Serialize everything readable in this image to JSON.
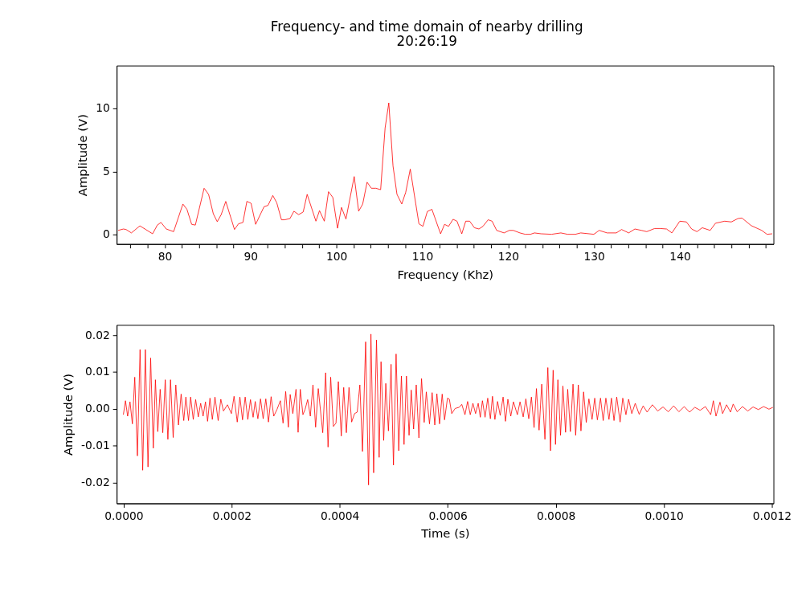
{
  "chart_data": [
    {
      "type": "line",
      "title": "Frequency- and time domain of nearby drilling",
      "subtitle": "20:26:19",
      "xlabel": "Frequency (Khz)",
      "ylabel": "Amplitude (V)",
      "xlim": [
        74.4,
        150.9
      ],
      "ylim": [
        -0.75,
        13.4
      ],
      "xticks": [
        {
          "value": 76,
          "label": null
        },
        {
          "value": 78,
          "label": null
        },
        80,
        {
          "value": 82,
          "label": null
        },
        {
          "value": 84,
          "label": null
        },
        {
          "value": 86,
          "label": null
        },
        {
          "value": 88,
          "label": null
        },
        90,
        {
          "value": 92,
          "label": null
        },
        {
          "value": 94,
          "label": null
        },
        {
          "value": 96,
          "label": null
        },
        {
          "value": 98,
          "label": null
        },
        100,
        {
          "value": 102,
          "label": null
        },
        {
          "value": 104,
          "label": null
        },
        {
          "value": 106,
          "label": null
        },
        {
          "value": 108,
          "label": null
        },
        110,
        {
          "value": 112,
          "label": null
        },
        {
          "value": 114,
          "label": null
        },
        {
          "value": 116,
          "label": null
        },
        {
          "value": 118,
          "label": null
        },
        120,
        {
          "value": 122,
          "label": null
        },
        {
          "value": 124,
          "label": null
        },
        {
          "value": 126,
          "label": null
        },
        {
          "value": 128,
          "label": null
        },
        130,
        {
          "value": 132,
          "label": null
        },
        {
          "value": 134,
          "label": null
        },
        {
          "value": 136,
          "label": null
        },
        {
          "value": 138,
          "label": null
        },
        140,
        {
          "value": 142,
          "label": null
        },
        {
          "value": 144,
          "label": null
        },
        {
          "value": 146,
          "label": null
        },
        {
          "value": 148,
          "label": null
        },
        {
          "value": 150,
          "label": null
        }
      ],
      "yticks": [
        0,
        5,
        10
      ],
      "grid": false,
      "marker": "none",
      "line_style": "solid",
      "x": [
        74.58,
        75.2,
        75.5,
        76.12,
        77.11,
        78.59,
        79.14,
        79.57,
        80.18,
        81.04,
        82.12,
        82.59,
        83.14,
        83.57,
        84.59,
        85.11,
        85.66,
        86.12,
        86.58,
        87.11,
        88.13,
        88.59,
        89.11,
        89.57,
        90.06,
        90.59,
        91.57,
        92.03,
        92.59,
        93.05,
        93.6,
        93.97,
        94.59,
        95.05,
        95.6,
        96.13,
        96.59,
        97.61,
        98.03,
        98.59,
        99.08,
        99.58,
        100.13,
        100.59,
        101.11,
        102.07,
        102.59,
        103.06,
        103.57,
        104.07,
        104.59,
        105.15,
        105.67,
        106.1,
        106.59,
        107.05,
        107.61,
        108.07,
        108.6,
        109.61,
        110.07,
        110.59,
        111.12,
        112.13,
        112.59,
        113.06,
        113.58,
        114.04,
        114.6,
        115.06,
        115.52,
        116.07,
        116.6,
        117.06,
        117.67,
        118.13,
        118.66,
        119.52,
        120.14,
        120.6,
        121.37,
        121.98,
        122.6,
        123.06,
        123.83,
        125.06,
        126.14,
        126.91,
        127.83,
        128.45,
        129.98,
        130.6,
        131.52,
        132.6,
        133.21,
        134.04,
        134.76,
        135.52,
        136.14,
        137.06,
        137.68,
        138.45,
        139.07,
        139.99,
        140.76,
        141.37,
        141.99,
        142.6,
        143.53,
        144.15,
        145.22,
        145.99,
        146.76,
        147.23,
        148.3,
        149.53,
        150.15,
        150.76
      ],
      "series": [
        {
          "color": "#ff0000",
          "values": [
            0.33,
            0.44,
            0.4,
            0.13,
            0.69,
            0.06,
            0.75,
            0.96,
            0.44,
            0.23,
            2.42,
            2.0,
            0.81,
            0.75,
            3.67,
            3.19,
            1.65,
            1.02,
            1.58,
            2.63,
            0.4,
            0.85,
            0.96,
            2.63,
            2.48,
            0.81,
            2.21,
            2.31,
            3.1,
            2.52,
            1.17,
            1.17,
            1.27,
            1.85,
            1.58,
            1.79,
            3.19,
            1.06,
            1.9,
            1.06,
            3.4,
            2.94,
            0.5,
            2.15,
            1.23,
            4.6,
            1.85,
            2.42,
            4.15,
            3.67,
            3.67,
            3.56,
            8.46,
            10.44,
            5.44,
            3.19,
            2.42,
            3.35,
            5.19,
            0.85,
            0.65,
            1.83,
            2.0,
            0.06,
            0.81,
            0.65,
            1.21,
            1.06,
            0.06,
            1.06,
            1.06,
            0.54,
            0.44,
            0.65,
            1.17,
            1.06,
            0.33,
            0.13,
            0.33,
            0.33,
            0.13,
            0.02,
            0.02,
            0.13,
            0.06,
            0.02,
            0.13,
            0.02,
            0.02,
            0.13,
            0.02,
            0.33,
            0.13,
            0.13,
            0.4,
            0.13,
            0.44,
            0.33,
            0.23,
            0.48,
            0.48,
            0.44,
            0.13,
            1.06,
            1.0,
            0.44,
            0.23,
            0.54,
            0.33,
            0.9,
            1.06,
            1.0,
            1.27,
            1.31,
            0.71,
            0.33,
            0.02,
            0.06
          ]
        }
      ]
    },
    {
      "type": "line",
      "xlabel": "Time (s)",
      "ylabel": "Amplitude (V)",
      "xlim": [
        -1.3e-05,
        0.001203
      ],
      "ylim": [
        -0.0257,
        0.0228
      ],
      "xticks": [
        {
          "value": 0,
          "label": "0.0000"
        },
        {
          "value": 0.0002,
          "label": "0.0002"
        },
        {
          "value": 0.0004,
          "label": "0.0004"
        },
        {
          "value": 0.0006,
          "label": "0.0006"
        },
        {
          "value": 0.0008,
          "label": "0.0008"
        },
        {
          "value": 0.001,
          "label": "0.0010"
        },
        {
          "value": 0.0012,
          "label": "0.0012"
        }
      ],
      "yticks": [
        -0.02,
        -0.01,
        {
          "value": 0,
          "label": "0.00"
        },
        0.01,
        0.02
      ],
      "grid": false,
      "marker": "none",
      "line_style": "solid",
      "x": [
        -5e-07,
        3.4e-06,
        7.4e-06,
        1.18e-05,
        1.62e-05,
        2.06e-05,
        2.55e-05,
        3.04e-05,
        3.53e-05,
        4.02e-05,
        4.51e-05,
        5e-05,
        5.49e-05,
        5.88e-05,
        6.32e-05,
        6.76e-05,
        7.25e-05,
        7.7e-05,
        8.19e-05,
        8.68e-05,
        9.17e-05,
        9.66e-05,
        0.0001015,
        0.0001064,
        0.0001113,
        0.0001152,
        0.0001201,
        0.000124,
        0.0001289,
        0.0001333,
        0.0001382,
        0.0001426,
        0.0001471,
        0.0001515,
        0.0001554,
        0.0001598,
        0.0001642,
        0.0001691,
        0.000175,
        0.0001799,
        0.0001848,
        0.0001922,
        0.0001995,
        0.0002044,
        0.0002103,
        0.0002152,
        0.0002201,
        0.000225,
        0.0002299,
        0.0002348,
        0.0002397,
        0.0002436,
        0.0002485,
        0.0002534,
        0.0002583,
        0.0002632,
        0.0002681,
        0.000273,
        0.0002779,
        0.0002838,
        0.0002902,
        0.0002951,
        0.0003,
        0.0003049,
        0.0003083,
        0.0003132,
        0.0003191,
        0.000323,
        0.000327,
        0.0003319,
        0.0003358,
        0.0003407,
        0.0003456,
        0.0003505,
        0.0003554,
        0.0003603,
        0.0003686,
        0.000374,
        0.0003784,
        0.0003833,
        0.0003882,
        0.0003931,
        0.0003975,
        0.0004029,
        0.0004074,
        0.0004123,
        0.0004172,
        0.0004221,
        0.0004275,
        0.0004324,
        0.0004373,
        0.0004422,
        0.000448,
        0.0004534,
        0.0004578,
        0.0004628,
        0.0004681,
        0.000473,
        0.0004765,
        0.0004814,
        0.0004853,
        0.0004902,
        0.0004951,
        0.0004995,
        0.0005044,
        0.0005093,
        0.0005142,
        0.0005191,
        0.0005235,
        0.0005284,
        0.0005324,
        0.0005368,
        0.0005417,
        0.0005466,
        0.0005515,
        0.0005564,
        0.0005603,
        0.0005662,
        0.0005711,
        0.000576,
        0.0005799,
        0.0005848,
        0.0005897,
        0.0005941,
        0.0005995,
        0.000603,
        0.0006074,
        0.0006137,
        0.0006211,
        0.000626,
        0.0006319,
        0.0006368,
        0.0006417,
        0.0006466,
        0.0006515,
        0.0006564,
        0.0006603,
        0.0006642,
        0.0006691,
        0.000674,
        0.0006789,
        0.0006828,
        0.0006873,
        0.0006922,
        0.0006971,
        0.0007025,
        0.0007069,
        0.0007113,
        0.0007167,
        0.0007216,
        0.0007289,
        0.0007338,
        0.0007397,
        0.0007446,
        0.00075,
        0.0007549,
        0.0007598,
        0.0007642,
        0.0007691,
        0.000774,
        0.0007799,
        0.0007853,
        0.0007902,
        0.0007951,
        0.0007995,
        0.0008039,
        0.0008088,
        0.0008132,
        0.0008181,
        0.0008221,
        0.000827,
        0.0008319,
        0.0008368,
        0.0008417,
        0.0008466,
        0.0008515,
        0.0008564,
        0.0008613,
        0.0008672,
        0.0008721,
        0.000877,
        0.0008828,
        0.0008878,
        0.0008927,
        0.0008985,
        0.000903,
        0.0009078,
        0.0009128,
        0.0009191,
        0.000924,
        0.0009299,
        0.0009348,
        0.0009407,
        0.0009471,
        0.0009544,
        0.0009618,
        0.0009691,
        0.0009789,
        0.0009887,
        0.0009985,
        0.0010083,
        0.0010181,
        0.0010279,
        0.0010378,
        0.0010476,
        0.0010574,
        0.0010672,
        0.001077,
        0.0010868,
        0.0010917,
        0.0010966,
        0.001104,
        0.0011088,
        0.0011162,
        0.0011235,
        0.0011284,
        0.0011358,
        0.0011456,
        0.0011554,
        0.0011652,
        0.001175,
        0.0011848,
        0.0011946,
        0.001202
      ],
      "series": [
        {
          "color": "#ff0000",
          "values": [
            -0.0016,
            0.0022,
            -0.002,
            0.0019,
            -0.0041,
            0.0086,
            -0.0128,
            0.0161,
            -0.0167,
            0.0161,
            -0.0158,
            0.0138,
            -0.0107,
            0.0079,
            -0.0062,
            0.0053,
            -0.0065,
            0.0079,
            -0.0083,
            0.0079,
            -0.0078,
            0.0065,
            -0.0044,
            0.004,
            -0.0032,
            0.0032,
            -0.0032,
            0.0032,
            -0.0029,
            0.0025,
            -0.0022,
            0.0015,
            -0.002,
            0.0019,
            -0.0034,
            0.0029,
            -0.0029,
            0.0032,
            -0.0032,
            0.0026,
            -0.0006,
            0.0011,
            -0.0013,
            0.0034,
            -0.0036,
            0.0032,
            -0.003,
            0.0032,
            -0.0029,
            0.0025,
            -0.0023,
            0.002,
            -0.0027,
            0.0027,
            -0.0027,
            0.0027,
            -0.0036,
            0.0033,
            -0.002,
            -0.0002,
            0.0022,
            -0.0039,
            0.0047,
            -0.005,
            0.0039,
            -0.0013,
            0.0053,
            -0.0064,
            0.0053,
            -0.0016,
            -0.0002,
            0.0025,
            -0.002,
            0.0065,
            -0.005,
            0.0055,
            -0.0065,
            0.0098,
            -0.0104,
            0.0086,
            -0.0048,
            -0.0039,
            0.0074,
            -0.0074,
            0.0058,
            -0.0065,
            0.0058,
            -0.0036,
            -0.0013,
            -0.0009,
            0.0065,
            -0.0116,
            0.0182,
            -0.0207,
            0.0203,
            -0.0174,
            0.0187,
            -0.0132,
            0.0128,
            -0.0086,
            0.0069,
            -0.006,
            0.0121,
            -0.0153,
            0.0149,
            -0.0114,
            0.0089,
            -0.0097,
            0.0089,
            -0.0072,
            0.0051,
            -0.0055,
            0.0065,
            -0.0079,
            0.0082,
            -0.0037,
            0.0046,
            -0.0041,
            0.0044,
            -0.0044,
            0.0041,
            -0.0041,
            0.004,
            -0.003,
            0.0029,
            0.0026,
            -0.0013,
            0.0001,
            0.0004,
            0.0012,
            -0.0016,
            0.002,
            -0.0016,
            0.0015,
            -0.0013,
            0.0015,
            -0.0023,
            0.0022,
            -0.0023,
            0.0029,
            -0.0027,
            0.0034,
            -0.0029,
            0.002,
            -0.0018,
            0.0032,
            -0.0034,
            0.0026,
            -0.002,
            0.0019,
            -0.0016,
            0.0019,
            -0.0022,
            0.0027,
            -0.0027,
            0.0032,
            -0.0051,
            0.0055,
            -0.0058,
            0.0067,
            -0.0083,
            0.0112,
            -0.0114,
            0.0105,
            -0.0097,
            0.0079,
            -0.0072,
            0.0062,
            -0.0064,
            0.0053,
            -0.0062,
            0.0067,
            -0.0072,
            0.0065,
            -0.006,
            0.0046,
            -0.0037,
            0.0027,
            -0.0029,
            0.0029,
            -0.003,
            0.0029,
            -0.0032,
            0.0029,
            -0.0029,
            0.0029,
            -0.0032,
            0.0032,
            -0.0036,
            0.0029,
            -0.0016,
            0.0026,
            -0.0013,
            0.0015,
            -0.0015,
            0.0008,
            -0.0009,
            0.0011,
            -0.0006,
            0.0005,
            -0.0008,
            0.0008,
            -0.0008,
            0.0006,
            -0.0009,
            0.0004,
            -0.0004,
            0.0006,
            -0.0016,
            0.0022,
            -0.002,
            0.0018,
            -0.0013,
            0.0011,
            -0.0009,
            0.0013,
            -0.0008,
            0.0006,
            -0.0006,
            0.0005,
            -0.0002,
            0.0006,
            -0.0001,
            0.0004
          ]
        }
      ]
    }
  ]
}
